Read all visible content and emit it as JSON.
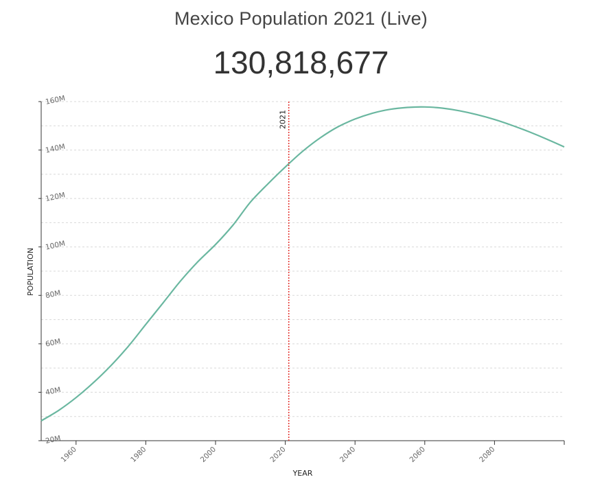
{
  "page": {
    "title": "Mexico Population 2021 (Live)",
    "counter": "130,818,677"
  },
  "chart_data": {
    "type": "line",
    "xlabel": "YEAR",
    "ylabel": "POPULATION",
    "xlim": [
      1950,
      2100
    ],
    "ylim": [
      20000000,
      160000000
    ],
    "x_ticks": [
      1960,
      1980,
      2000,
      2020,
      2040,
      2060,
      2080
    ],
    "x_tick_labels": [
      "1960",
      "1980",
      "2000",
      "2020",
      "2040",
      "2060",
      "2080"
    ],
    "y_ticks": [
      20000000,
      40000000,
      60000000,
      80000000,
      100000000,
      120000000,
      140000000,
      160000000
    ],
    "y_tick_labels": [
      "20M",
      "40M",
      "60M",
      "80M",
      "100M",
      "120M",
      "140M",
      "160M"
    ],
    "grid": true,
    "marker": {
      "x": 2021,
      "label": "2021",
      "color": "#e53935"
    },
    "series": [
      {
        "color": "#6ab7a0",
        "x": [
          1950,
          1955,
          1960,
          1965,
          1970,
          1975,
          1980,
          1985,
          1990,
          1995,
          2000,
          2005,
          2010,
          2015,
          2020,
          2025,
          2030,
          2035,
          2040,
          2045,
          2050,
          2055,
          2060,
          2065,
          2070,
          2075,
          2080,
          2085,
          2090,
          2095,
          2100
        ],
        "y": [
          28200000,
          32500000,
          37800000,
          44000000,
          51000000,
          59000000,
          68000000,
          77000000,
          86000000,
          94000000,
          101000000,
          109000000,
          118500000,
          126000000,
          133000000,
          139500000,
          145000000,
          149500000,
          152800000,
          155200000,
          156800000,
          157600000,
          157800000,
          157300000,
          156200000,
          154600000,
          152600000,
          150200000,
          147500000,
          144500000,
          141300000
        ]
      }
    ]
  }
}
